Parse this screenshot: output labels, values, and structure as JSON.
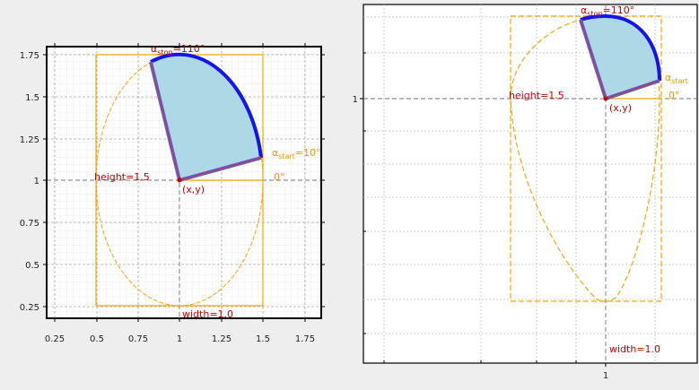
{
  "colors": {
    "background": "#eeeeee",
    "plot_bg": "#ffffff",
    "frame": "#000000",
    "box": "#f5a700",
    "ellipse": "#f5a700",
    "arc_outline": "#1010ee",
    "pie_fill": "#add8e6",
    "radius_line": "#cc0000",
    "label_red": "#cc0000",
    "label_orange": "#e89a00",
    "grid": "#bbbbbb",
    "zero_line": "#888888"
  },
  "left_plot": {
    "ticks_x": [
      "0.25",
      "0.5",
      "0.75",
      "1",
      "1.25",
      "1.5",
      "1.75"
    ],
    "ticks_y": [
      "1.75",
      "1.5",
      "1.25",
      "1",
      "0.75",
      "0.5",
      "0.25"
    ],
    "labels": {
      "alpha_stop": "α",
      "alpha_stop_sub": "stop",
      "alpha_stop_val": "=110°",
      "alpha_start": "α",
      "alpha_start_sub": "start",
      "alpha_start_val": "=10°",
      "zero_deg": "0°",
      "height": "height=1.5",
      "width": "width=1.0",
      "origin": "(x,y)"
    }
  },
  "right_plot": {
    "ticks_x": [
      "1"
    ],
    "ticks_y": [
      "1"
    ],
    "labels": {
      "alpha_stop": "α",
      "alpha_stop_sub": "stop",
      "alpha_stop_val": "=110°",
      "alpha_start": "α",
      "alpha_start_sub": "start",
      "zero_deg": "0°",
      "height": "height=1.5",
      "width": "width=1.0",
      "origin": "(x,y)"
    }
  }
}
